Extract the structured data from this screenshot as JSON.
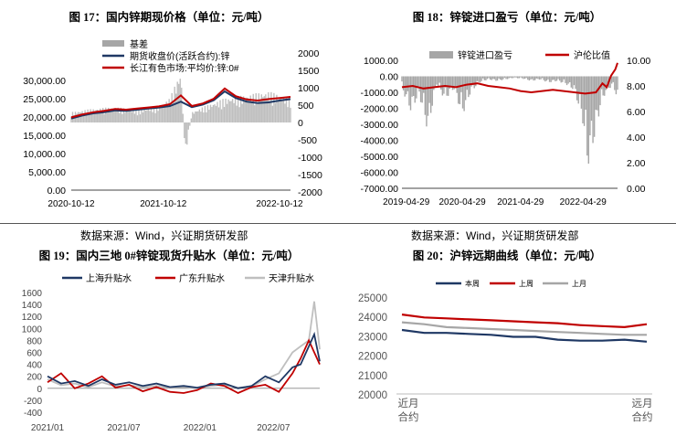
{
  "colors": {
    "navy": "#1f3864",
    "red": "#c00000",
    "gray": "#a6a6a6",
    "lightgray": "#bfbfbf"
  },
  "source_text": "数据来源：Wind，兴证期货研发部",
  "chart_data": [
    {
      "id": "c17",
      "type": "line",
      "title": "图 17：国内锌期现价格（单位：元/吨）",
      "legend": [
        "基差",
        "期货收盘价(活跃合约):锌",
        "长江有色市场:平均价:锌:0#"
      ],
      "x_ticks": [
        "2020-10-12",
        "2021-10-12",
        "2022-10-12"
      ],
      "y_left": {
        "range": [
          0,
          30000
        ],
        "ticks": [
          "0.00",
          "5,000.00",
          "10,000.00",
          "15,000.00",
          "20,000.00",
          "25,000.00",
          "30,000.00"
        ]
      },
      "y_right": {
        "range": [
          -2000,
          2000
        ],
        "ticks": [
          "-2000",
          "-1500",
          "-1000",
          "-500",
          "0",
          "500",
          "1000",
          "1500",
          "2000"
        ]
      },
      "series": [
        {
          "name": "期货收盘价(活跃合约):锌",
          "axis": "left",
          "x": [
            0,
            0.05,
            0.1,
            0.15,
            0.2,
            0.25,
            0.3,
            0.35,
            0.4,
            0.45,
            0.5,
            0.55,
            0.6,
            0.65,
            0.7,
            0.75,
            0.8,
            0.85,
            0.9,
            0.95,
            1.0
          ],
          "values": [
            19600,
            20400,
            21000,
            21300,
            21800,
            21700,
            22000,
            22300,
            22600,
            23000,
            24200,
            22700,
            23400,
            24600,
            27000,
            25200,
            24200,
            23800,
            24000,
            24500,
            24900
          ]
        },
        {
          "name": "长江有色市场:平均价:锌:0#",
          "axis": "left",
          "x": [
            0,
            0.05,
            0.1,
            0.15,
            0.2,
            0.25,
            0.3,
            0.35,
            0.4,
            0.45,
            0.5,
            0.55,
            0.6,
            0.65,
            0.7,
            0.75,
            0.8,
            0.85,
            0.9,
            0.95,
            1.0
          ],
          "values": [
            19900,
            20700,
            21300,
            21700,
            22200,
            22000,
            22300,
            22600,
            22900,
            23500,
            25900,
            23000,
            23700,
            25000,
            27800,
            25700,
            24800,
            24500,
            24900,
            25200,
            25500
          ]
        },
        {
          "name": "基差",
          "axis": "right",
          "type": "bar",
          "x": [
            0,
            0.1,
            0.2,
            0.3,
            0.4,
            0.45,
            0.5,
            0.52,
            0.55,
            0.6,
            0.7,
            0.8,
            0.9,
            1.0
          ],
          "values": [
            300,
            400,
            450,
            350,
            500,
            700,
            1500,
            -1000,
            300,
            450,
            700,
            800,
            900,
            700
          ]
        }
      ]
    },
    {
      "id": "c18",
      "type": "line",
      "title": "图 18：锌锭进口盈亏（单位：元/吨）",
      "legend": [
        "锌锭进口盈亏",
        "沪伦比值"
      ],
      "x_ticks": [
        "2019-04-29",
        "2020-04-29",
        "2021-04-29",
        "2022-04-29"
      ],
      "y_left": {
        "range": [
          -7000,
          1000
        ],
        "ticks": [
          "-7000.00",
          "-6000.00",
          "-5000.00",
          "-4000.00",
          "-3000.00",
          "-2000.00",
          "-1000.00",
          "0.00",
          "1000.00"
        ]
      },
      "y_right": {
        "range": [
          0,
          10
        ],
        "ticks": [
          "0.00",
          "2.00",
          "4.00",
          "6.00",
          "8.00",
          "10.00"
        ]
      },
      "series": [
        {
          "name": "锌锭进口盈亏",
          "axis": "left",
          "type": "bar",
          "x": [
            0,
            0.04,
            0.08,
            0.12,
            0.16,
            0.2,
            0.24,
            0.28,
            0.32,
            0.36,
            0.4,
            0.44,
            0.48,
            0.52,
            0.56,
            0.6,
            0.64,
            0.68,
            0.72,
            0.76,
            0.8,
            0.84,
            0.86,
            0.88,
            0.9,
            0.92,
            0.94,
            0.96,
            0.98,
            1.0
          ],
          "values": [
            -800,
            -2200,
            -1200,
            -3500,
            -500,
            -1500,
            -800,
            -2500,
            -1000,
            -400,
            -200,
            -300,
            -200,
            -100,
            -150,
            -300,
            -200,
            -400,
            -300,
            -500,
            -900,
            -3000,
            -5800,
            -4800,
            -3500,
            -2000,
            -1200,
            -800,
            -600,
            -1500
          ]
        },
        {
          "name": "沪伦比值",
          "axis": "right",
          "x": [
            0,
            0.05,
            0.1,
            0.15,
            0.2,
            0.25,
            0.3,
            0.35,
            0.4,
            0.45,
            0.5,
            0.55,
            0.6,
            0.65,
            0.7,
            0.75,
            0.8,
            0.85,
            0.9,
            0.93,
            0.95,
            0.97,
            0.99,
            1.0
          ],
          "values": [
            7.9,
            8.0,
            7.8,
            7.9,
            8.0,
            7.9,
            8.1,
            8.2,
            8.0,
            7.9,
            7.8,
            7.6,
            7.5,
            7.6,
            7.7,
            7.6,
            7.5,
            7.4,
            7.5,
            8.2,
            7.9,
            8.8,
            9.3,
            9.8
          ]
        }
      ]
    },
    {
      "id": "c19",
      "type": "line",
      "title": "图 19：国内三地 0#锌锭现货升贴水（单位：元/吨）",
      "legend": [
        "上海升贴水",
        "广东升贴水",
        "天津升贴水"
      ],
      "x_ticks": [
        "2021/01",
        "2021/07",
        "2022/01",
        "2022/07"
      ],
      "y": {
        "range": [
          -400,
          1600
        ],
        "ticks": [
          "-400",
          "-200",
          "0",
          "200",
          "400",
          "600",
          "800",
          "1000",
          "1200",
          "1400",
          "1600"
        ]
      },
      "series": [
        {
          "name": "上海升贴水",
          "x": [
            0,
            0.05,
            0.1,
            0.15,
            0.2,
            0.25,
            0.3,
            0.35,
            0.4,
            0.45,
            0.5,
            0.55,
            0.6,
            0.65,
            0.7,
            0.75,
            0.8,
            0.85,
            0.9,
            0.93,
            0.96,
            0.98,
            1.0
          ],
          "values": [
            200,
            80,
            120,
            40,
            150,
            60,
            100,
            40,
            80,
            20,
            40,
            10,
            60,
            80,
            0,
            40,
            200,
            100,
            350,
            400,
            700,
            900,
            450
          ]
        },
        {
          "name": "广东升贴水",
          "x": [
            0,
            0.05,
            0.1,
            0.15,
            0.2,
            0.25,
            0.3,
            0.35,
            0.4,
            0.45,
            0.5,
            0.55,
            0.6,
            0.65,
            0.7,
            0.75,
            0.8,
            0.85,
            0.9,
            0.93,
            0.96,
            0.98,
            1.0
          ],
          "values": [
            100,
            250,
            0,
            80,
            200,
            10,
            60,
            -50,
            20,
            -60,
            -80,
            -30,
            80,
            40,
            -80,
            20,
            60,
            -60,
            250,
            500,
            800,
            600,
            400
          ]
        },
        {
          "name": "天津升贴水",
          "x": [
            0,
            0.05,
            0.1,
            0.15,
            0.2,
            0.25,
            0.3,
            0.35,
            0.4,
            0.45,
            0.5,
            0.55,
            0.6,
            0.65,
            0.7,
            0.75,
            0.8,
            0.85,
            0.9,
            0.93,
            0.96,
            0.98,
            1.0
          ],
          "values": [
            150,
            50,
            80,
            20,
            100,
            30,
            50,
            20,
            40,
            10,
            20,
            0,
            40,
            60,
            10,
            30,
            150,
            250,
            600,
            700,
            800,
            1450,
            650
          ]
        }
      ]
    },
    {
      "id": "c20",
      "type": "line",
      "title": "图 20：沪锌远期曲线（单位：元/吨）",
      "legend": [
        "本周",
        "上周",
        "上月"
      ],
      "categories_first": [
        "近月",
        "合约"
      ],
      "categories_last": [
        "远月",
        "合约"
      ],
      "y": {
        "range": [
          20000,
          25000
        ],
        "ticks": [
          "20000",
          "21000",
          "22000",
          "23000",
          "24000",
          "25000"
        ]
      },
      "series": [
        {
          "name": "本周",
          "values": [
            23300,
            23150,
            23150,
            23100,
            23050,
            22950,
            22950,
            22800,
            22750,
            22750,
            22800,
            22700
          ]
        },
        {
          "name": "上周",
          "values": [
            24100,
            23950,
            23900,
            23850,
            23800,
            23750,
            23700,
            23650,
            23550,
            23500,
            23450,
            23600
          ]
        },
        {
          "name": "上月",
          "values": [
            23700,
            23600,
            23450,
            23400,
            23350,
            23300,
            23250,
            23200,
            23150,
            23100,
            23050,
            23050
          ]
        }
      ]
    }
  ]
}
